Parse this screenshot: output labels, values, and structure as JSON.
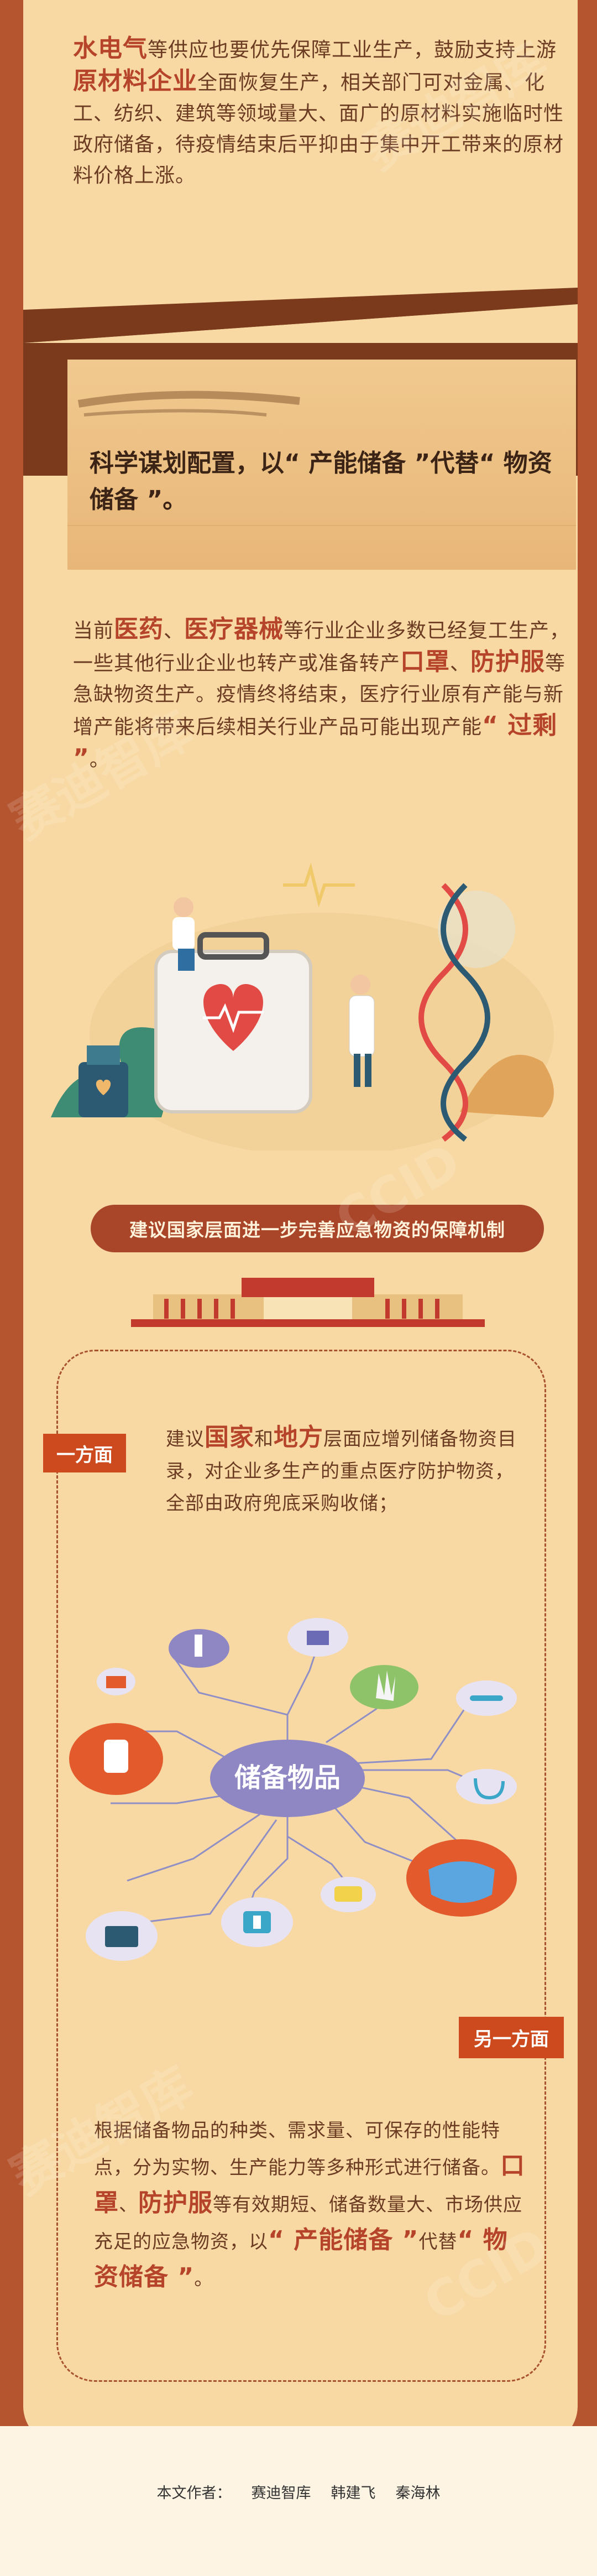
{
  "section1": {
    "hl_1": "水电气",
    "text_1": "等供应也要优先保障工业生产，鼓励支持上游",
    "hl_2": "原材料企业",
    "text_2": "全面恢复生产，相关部门可对金属、化工、纺织、建筑等领域量大、面广的原材料实施临时性政府储备，待疫情结束后平抑由于集中开工带来的原材料价格上涨。"
  },
  "callout": {
    "text": "科学谋划配置，以“ 产能储备 ”代替“ 物资储备 ”。"
  },
  "section2": {
    "text_1": "当前",
    "hl_1": "医药",
    "text_2": "、",
    "hl_2": "医疗器械",
    "text_3": "等行业企业多数已经复工生产，一些其他行业企业也转产或准备转产",
    "hl_3": "口罩",
    "text_4": "、",
    "hl_4": "防护服",
    "text_5": "等急缺物资生产。疫情终将结束，医疗行业原有产能与新增产能将带来后续相关行业产品可能出现产能",
    "hl_5": "“ 过剩 ”",
    "text_6": "。"
  },
  "banner": {
    "label": "建议国家层面进一步完善应急物资的保障机制"
  },
  "one_side": {
    "tag": "一方面",
    "text_1": "建议",
    "hl_1": "国家",
    "text_2": "和",
    "hl_2": "地方",
    "text_3": "层面应增列储备物资目录，对企业多生产的重点医疗防护物资，全部由政府兜底采购收储；"
  },
  "diagram": {
    "center_label": "储备物品"
  },
  "other_side": {
    "tag": "另一方面",
    "text_1": "根据储备物品的种类、需求量、可保存的性能特点，分为实物、生产能力等多种形式进行储备。",
    "hl_1": "口罩",
    "text_2": "、",
    "hl_2": "防护服",
    "text_3": "等有效期短、储备数量大、市场供应充足的应急物资，以",
    "hl_3": "“ 产能储备 ”",
    "text_4": "代替",
    "hl_4": "“ 物资储备 ”",
    "text_5": "。"
  },
  "footer": {
    "label": "本文作者：",
    "author_1": "赛迪智库",
    "author_2": "韩建飞",
    "author_3": "秦海林"
  },
  "watermarks": [
    "赛迪智库",
    "CCID"
  ],
  "colors": {
    "page_bg": "#b5552f",
    "panel": "#f8d9a4",
    "accent": "#b5442a",
    "tag": "#cc4a1d"
  }
}
